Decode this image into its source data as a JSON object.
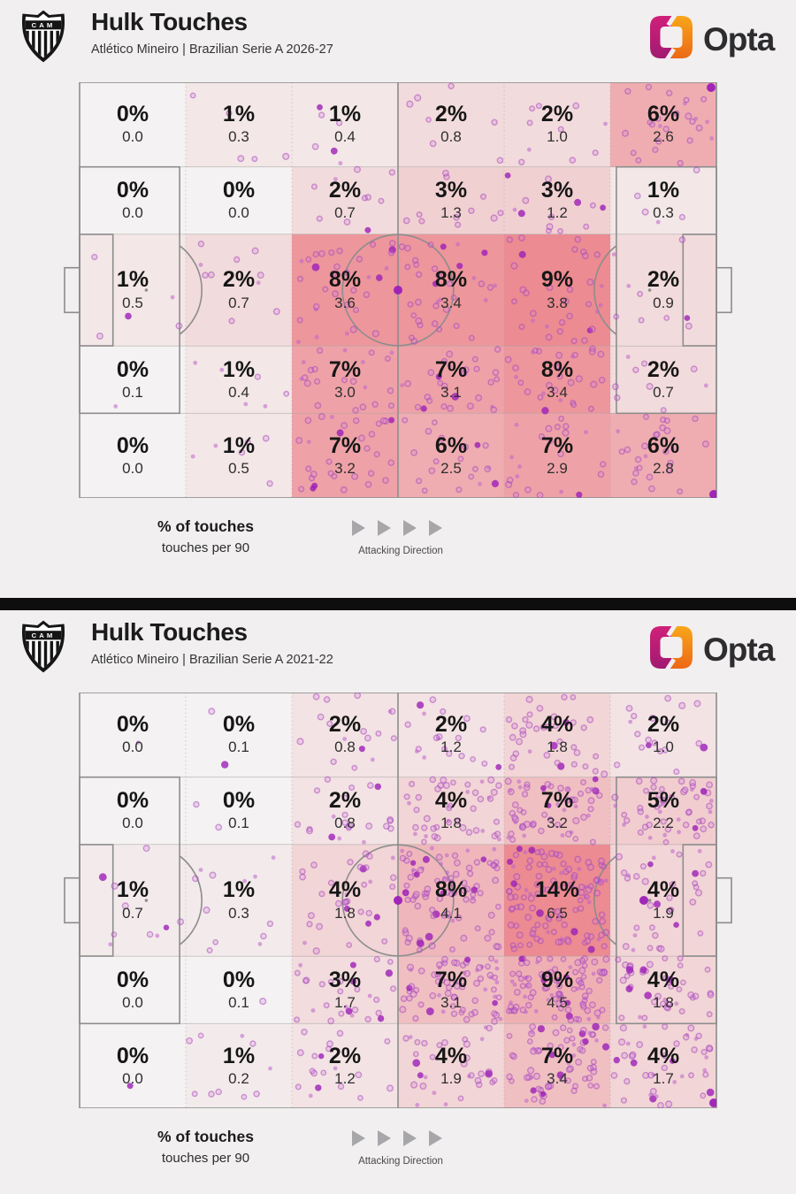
{
  "brand": "Opta",
  "legend": {
    "line1": "% of touches",
    "line2": "touches per 90",
    "attacking_direction": "Attacking Direction"
  },
  "colors": {
    "background": "#f1efef",
    "divider": "#0e0e0e",
    "pitch_line": "#8d8d8d",
    "grid_line": "#aca5a5",
    "heat_zero": "#f4f2f2",
    "heat_max": "#ec8b91",
    "dot_fill": "#cd82d7",
    "dot_stroke": "#a53fba",
    "dot_solid": "#bd63cc",
    "marker_dot": "#9c1fb8",
    "opta_magenta_top": "#d02079",
    "opta_magenta_bottom": "#a11a71",
    "opta_orange_top": "#f9a61a",
    "opta_orange_bottom": "#ec6816",
    "arrow_gray": "#a7a7aa",
    "text_dark": "#1c1c1c"
  },
  "chart_data": [
    {
      "type": "heatmap",
      "title": "Hulk Touches",
      "subtitle": "Atlético Mineiro | Brazilian Serie A 2026-27",
      "club_badge": "Atlético Mineiro crest (C A M)",
      "max_pct": 9,
      "dots_per_percent": 3.6,
      "rows": [
        [
          {
            "pct": "0%",
            "value": 0,
            "per90": "0.0"
          },
          {
            "pct": "1%",
            "value": 1,
            "per90": "0.3"
          },
          {
            "pct": "1%",
            "value": 1,
            "per90": "0.4"
          },
          {
            "pct": "2%",
            "value": 2,
            "per90": "0.8"
          },
          {
            "pct": "2%",
            "value": 2,
            "per90": "1.0"
          },
          {
            "pct": "6%",
            "value": 6,
            "per90": "2.6"
          }
        ],
        [
          {
            "pct": "0%",
            "value": 0,
            "per90": "0.0"
          },
          {
            "pct": "0%",
            "value": 0,
            "per90": "0.0"
          },
          {
            "pct": "2%",
            "value": 2,
            "per90": "0.7"
          },
          {
            "pct": "3%",
            "value": 3,
            "per90": "1.3"
          },
          {
            "pct": "3%",
            "value": 3,
            "per90": "1.2"
          },
          {
            "pct": "1%",
            "value": 1,
            "per90": "0.3"
          }
        ],
        [
          {
            "pct": "1%",
            "value": 1,
            "per90": "0.5"
          },
          {
            "pct": "2%",
            "value": 2,
            "per90": "0.7"
          },
          {
            "pct": "8%",
            "value": 8,
            "per90": "3.6"
          },
          {
            "pct": "8%",
            "value": 8,
            "per90": "3.4"
          },
          {
            "pct": "9%",
            "value": 9,
            "per90": "3.8"
          },
          {
            "pct": "2%",
            "value": 2,
            "per90": "0.9"
          }
        ],
        [
          {
            "pct": "0%",
            "value": 0,
            "per90": "0.1"
          },
          {
            "pct": "1%",
            "value": 1,
            "per90": "0.4"
          },
          {
            "pct": "7%",
            "value": 7,
            "per90": "3.0"
          },
          {
            "pct": "7%",
            "value": 7,
            "per90": "3.1"
          },
          {
            "pct": "8%",
            "value": 8,
            "per90": "3.4"
          },
          {
            "pct": "2%",
            "value": 2,
            "per90": "0.7"
          }
        ],
        [
          {
            "pct": "0%",
            "value": 0,
            "per90": "0.0"
          },
          {
            "pct": "1%",
            "value": 1,
            "per90": "0.5"
          },
          {
            "pct": "7%",
            "value": 7,
            "per90": "3.2"
          },
          {
            "pct": "6%",
            "value": 6,
            "per90": "2.5"
          },
          {
            "pct": "7%",
            "value": 7,
            "per90": "2.9"
          },
          {
            "pct": "6%",
            "value": 6,
            "per90": "2.8"
          }
        ]
      ],
      "marker_dots": [
        [
          360,
          235
        ],
        [
          714,
          6
        ],
        [
          717,
          466
        ]
      ]
    },
    {
      "type": "heatmap",
      "title": "Hulk Touches",
      "subtitle": "Atlético Mineiro | Brazilian Serie A 2021-22",
      "club_badge": "Atlético Mineiro crest (C A M)",
      "max_pct": 14,
      "dots_per_percent": 9.4,
      "rows": [
        [
          {
            "pct": "0%",
            "value": 0,
            "per90": "0.0"
          },
          {
            "pct": "0%",
            "value": 0,
            "per90": "0.1"
          },
          {
            "pct": "2%",
            "value": 2,
            "per90": "0.8"
          },
          {
            "pct": "2%",
            "value": 2,
            "per90": "1.2"
          },
          {
            "pct": "4%",
            "value": 4,
            "per90": "1.8"
          },
          {
            "pct": "2%",
            "value": 2,
            "per90": "1.0"
          }
        ],
        [
          {
            "pct": "0%",
            "value": 0,
            "per90": "0.0"
          },
          {
            "pct": "0%",
            "value": 0,
            "per90": "0.1"
          },
          {
            "pct": "2%",
            "value": 2,
            "per90": "0.8"
          },
          {
            "pct": "4%",
            "value": 4,
            "per90": "1.8"
          },
          {
            "pct": "7%",
            "value": 7,
            "per90": "3.2"
          },
          {
            "pct": "5%",
            "value": 5,
            "per90": "2.2"
          }
        ],
        [
          {
            "pct": "1%",
            "value": 1,
            "per90": "0.7"
          },
          {
            "pct": "1%",
            "value": 1,
            "per90": "0.3"
          },
          {
            "pct": "4%",
            "value": 4,
            "per90": "1.8"
          },
          {
            "pct": "8%",
            "value": 8,
            "per90": "4.1"
          },
          {
            "pct": "14%",
            "value": 14,
            "per90": "6.5"
          },
          {
            "pct": "4%",
            "value": 4,
            "per90": "1.9"
          }
        ],
        [
          {
            "pct": "0%",
            "value": 0,
            "per90": "0.0"
          },
          {
            "pct": "0%",
            "value": 0,
            "per90": "0.1"
          },
          {
            "pct": "3%",
            "value": 3,
            "per90": "1.7"
          },
          {
            "pct": "7%",
            "value": 7,
            "per90": "3.1"
          },
          {
            "pct": "9%",
            "value": 9,
            "per90": "4.5"
          },
          {
            "pct": "4%",
            "value": 4,
            "per90": "1.8"
          }
        ],
        [
          {
            "pct": "0%",
            "value": 0,
            "per90": "0.0"
          },
          {
            "pct": "1%",
            "value": 1,
            "per90": "0.2"
          },
          {
            "pct": "2%",
            "value": 2,
            "per90": "1.2"
          },
          {
            "pct": "4%",
            "value": 4,
            "per90": "1.9"
          },
          {
            "pct": "7%",
            "value": 7,
            "per90": "3.4"
          },
          {
            "pct": "4%",
            "value": 4,
            "per90": "1.7"
          }
        ]
      ],
      "marker_dots": [
        [
          360,
          235
        ],
        [
          638,
          235
        ],
        [
          717,
          464
        ]
      ]
    }
  ]
}
